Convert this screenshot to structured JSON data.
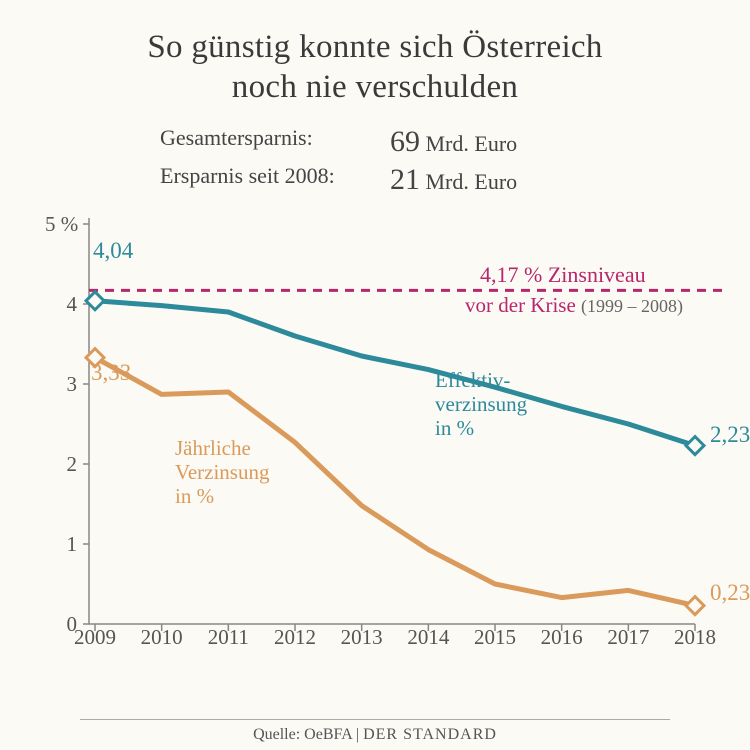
{
  "title_line1": "So günstig konnte sich Österreich",
  "title_line2": "noch nie verschulden",
  "stats": {
    "row1_label": "Gesamtersparnis:",
    "row1_big": "69",
    "row1_unit": "Mrd. Euro",
    "row2_label": "Ersparnis seit 2008:",
    "row2_big": "21",
    "row2_unit": "Mrd. Euro"
  },
  "chart": {
    "type": "line",
    "ylim": [
      0,
      5
    ],
    "xlim": [
      2009,
      2018
    ],
    "ytick_step": 1,
    "y_unit_label": "5 %",
    "yticks": [
      "0",
      "1",
      "2",
      "3",
      "4"
    ],
    "xticks": [
      "2009",
      "2010",
      "2011",
      "2012",
      "2013",
      "2014",
      "2015",
      "2016",
      "2017",
      "2018"
    ],
    "background_color": "#fcfaf5",
    "axis_color": "#888888",
    "tick_mark_color": "#888888",
    "label_fontsize": 21,
    "reference_line": {
      "value": 4.17,
      "color": "#b8266b",
      "dash": "9,7",
      "width": 3,
      "label_primary": "4,17 %  Zinsniveau",
      "label_secondary_prefix": "vor der Krise",
      "label_secondary_years": "(1999 – 2008)"
    },
    "series": [
      {
        "name": "Effektivverzinsung in %",
        "label_line1": "Effektiv-",
        "label_line2": "verzinsung",
        "label_line3": "in %",
        "color": "#2d8a9a",
        "line_width": 5,
        "marker_stroke_width": 3,
        "marker_fill": "#fcfaf5",
        "x": [
          2009,
          2010,
          2011,
          2012,
          2013,
          2014,
          2015,
          2016,
          2017,
          2018
        ],
        "y": [
          4.04,
          3.98,
          3.9,
          3.6,
          3.35,
          3.18,
          2.96,
          2.72,
          2.5,
          2.23
        ],
        "start_value_label": "4,04",
        "end_value_label": "2,23"
      },
      {
        "name": "Jährliche Verzinsung in %",
        "label_line1": "Jährliche",
        "label_line2": "Verzinsung",
        "label_line3": "in %",
        "color": "#d99a5b",
        "line_width": 5,
        "marker_stroke_width": 3,
        "marker_fill": "#fcfaf5",
        "x": [
          2009,
          2010,
          2011,
          2012,
          2013,
          2014,
          2015,
          2016,
          2017,
          2018
        ],
        "y": [
          3.33,
          2.87,
          2.9,
          2.27,
          1.48,
          0.93,
          0.5,
          0.33,
          0.42,
          0.23
        ],
        "start_value_label": "3,33",
        "end_value_label": "0,23"
      }
    ]
  },
  "footer": {
    "source": "Quelle: OeBFA",
    "sep": " | ",
    "brand": "DER STANDARD"
  }
}
